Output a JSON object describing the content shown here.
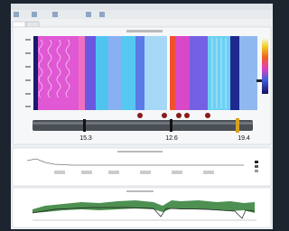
{
  "pipe_labels": [
    "15.3",
    "12.6",
    "19.4"
  ]
}
